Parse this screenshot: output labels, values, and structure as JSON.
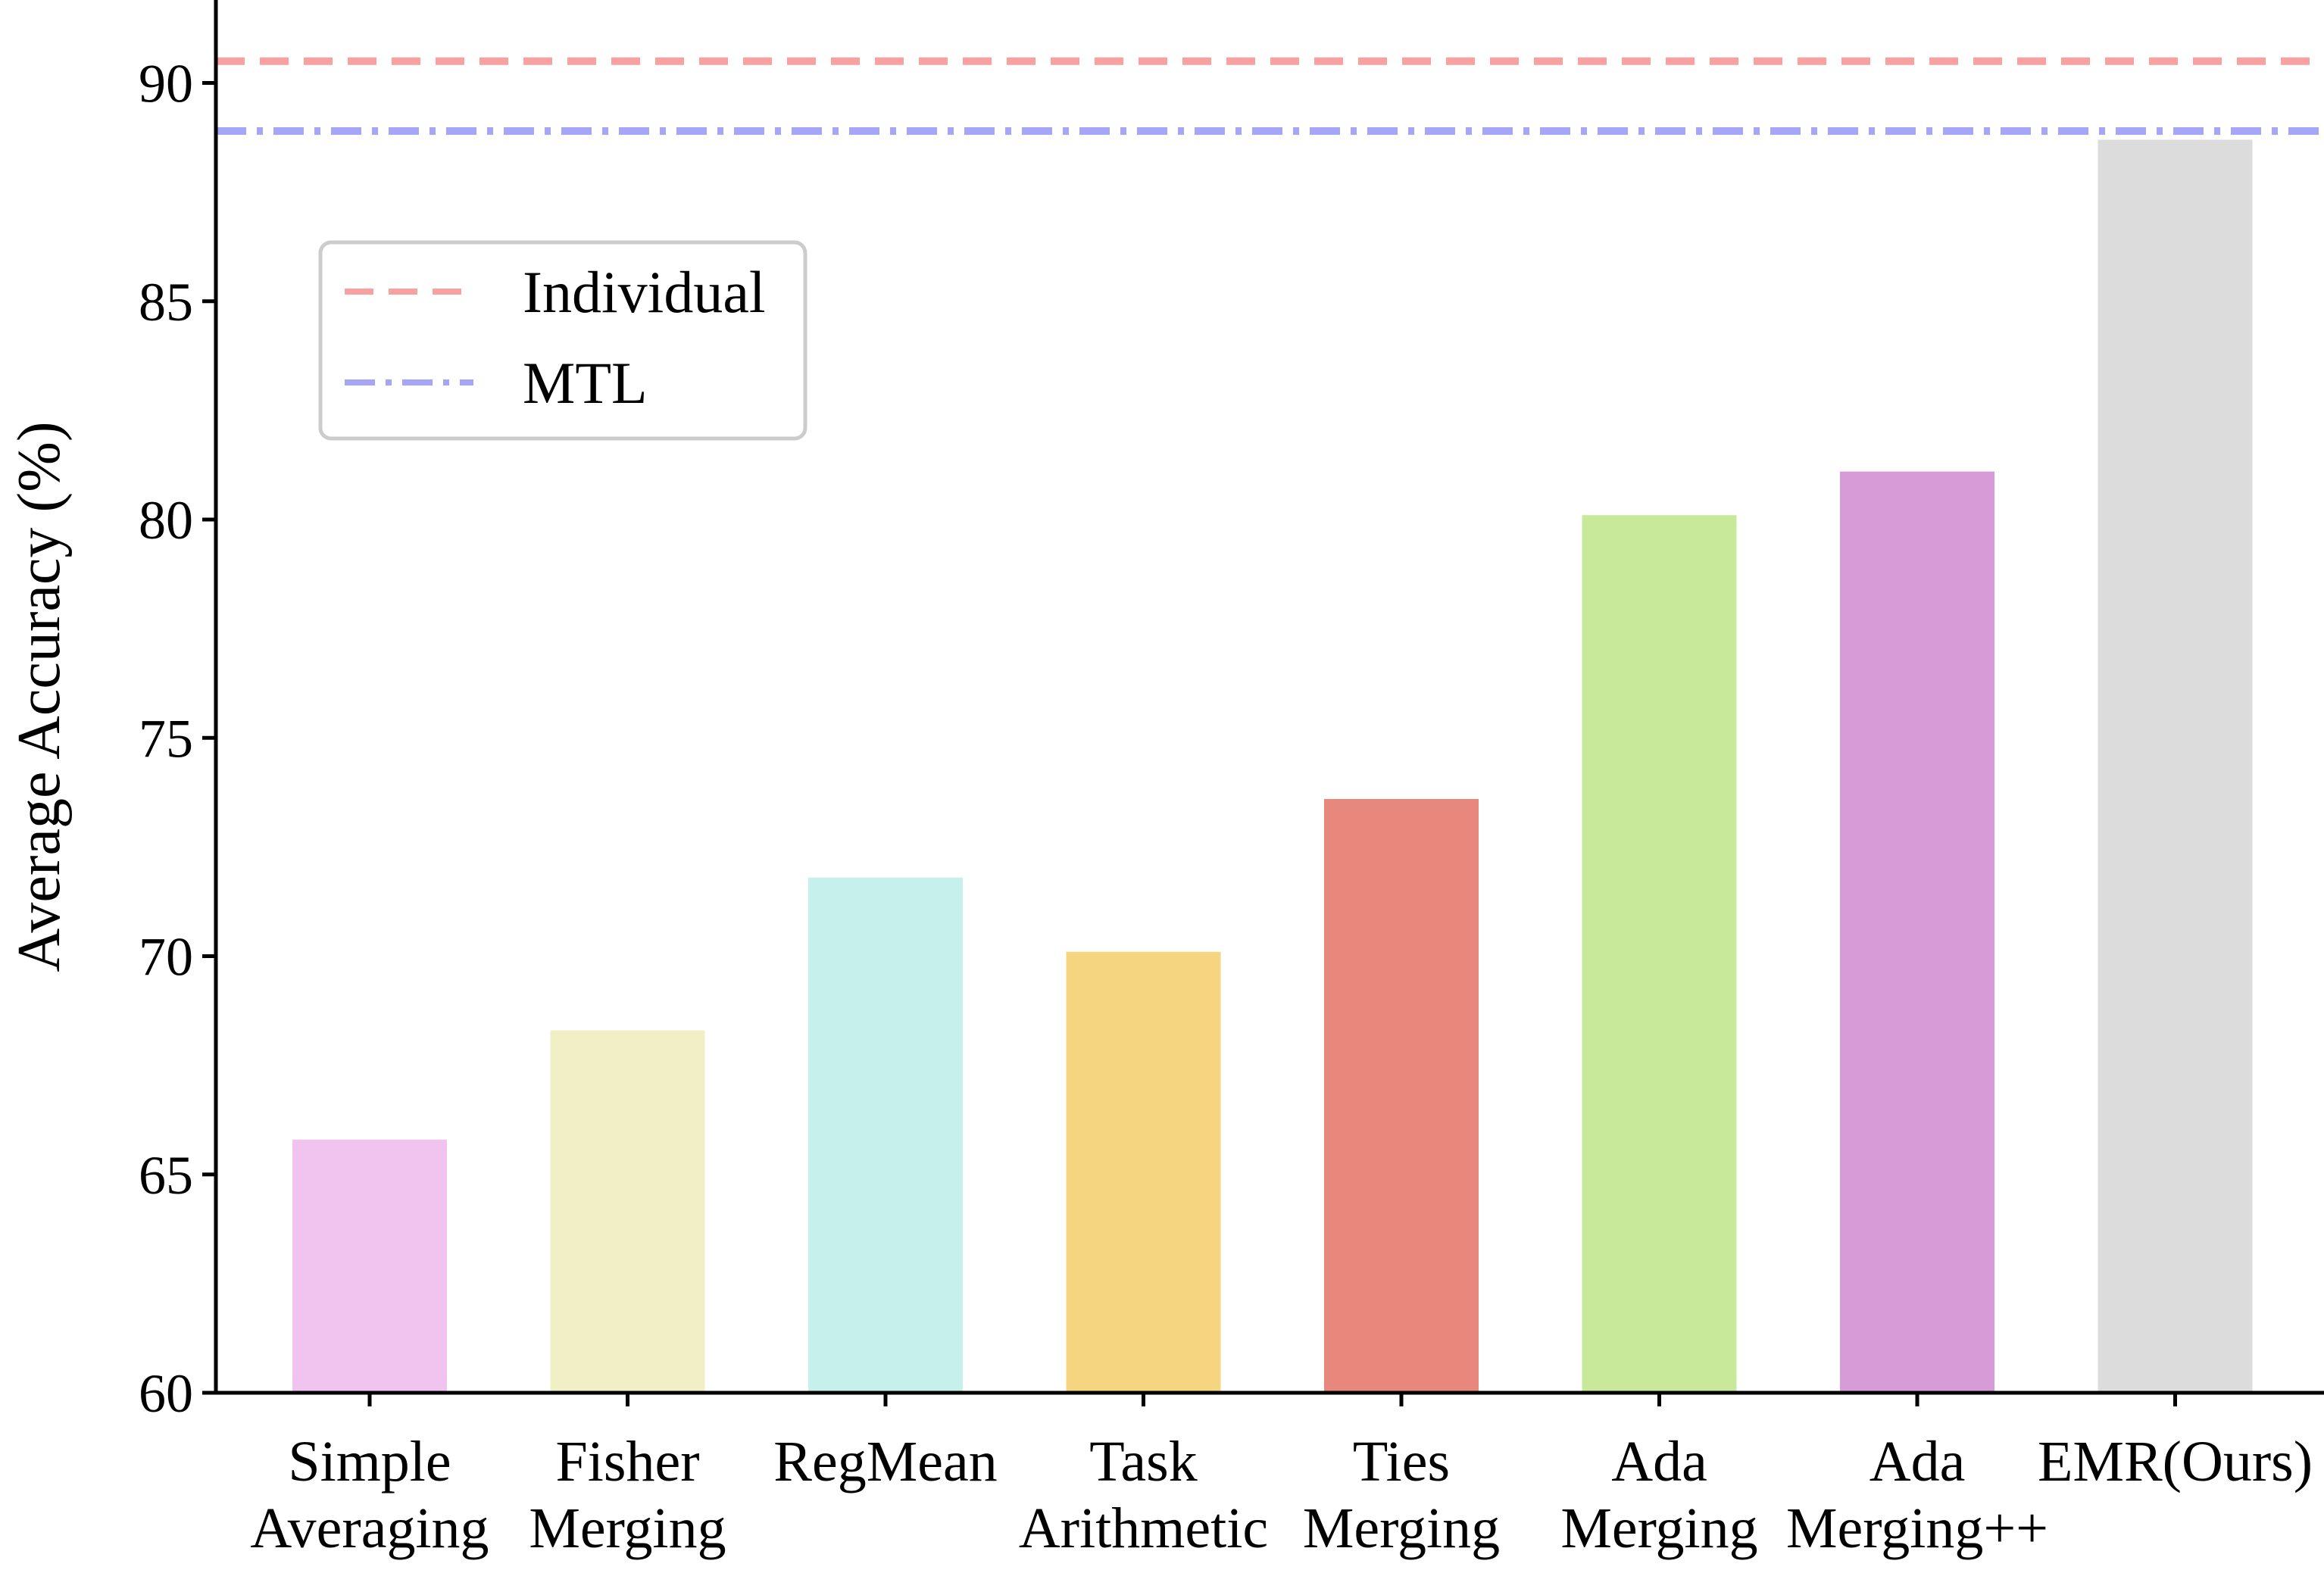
{
  "chart_data": {
    "type": "bar",
    "ylabel": "Average Accuracy (%)",
    "ylim": [
      60,
      91.9
    ],
    "yticks": [
      60,
      65,
      70,
      75,
      80,
      85,
      90
    ],
    "categories": [
      [
        "Simple",
        "Averaging"
      ],
      [
        "Fisher",
        "Merging"
      ],
      [
        "RegMean"
      ],
      [
        "Task",
        "Arithmetic"
      ],
      [
        "Ties",
        "Merging"
      ],
      [
        "Ada",
        "Merging"
      ],
      [
        "Ada",
        "Merging++"
      ],
      [
        "EMR(Ours)"
      ]
    ],
    "values": [
      65.8,
      68.3,
      71.8,
      70.1,
      73.6,
      80.1,
      81.1,
      88.7
    ],
    "bar_colors": [
      "#f0c4ee",
      "#f0efc6",
      "#c5f0ec",
      "#f6d580",
      "#e8877b",
      "#c8e89a",
      "#d79cd8",
      "#dcdcdc"
    ],
    "reference_lines": [
      {
        "name": "Individual",
        "value": 90.5,
        "color": "#f7a1a0",
        "style": "dashed"
      },
      {
        "name": "MTL",
        "value": 88.9,
        "color": "#a6a6f8",
        "style": "dashdot"
      }
    ],
    "legend_position": "upper-left",
    "grid": false
  }
}
